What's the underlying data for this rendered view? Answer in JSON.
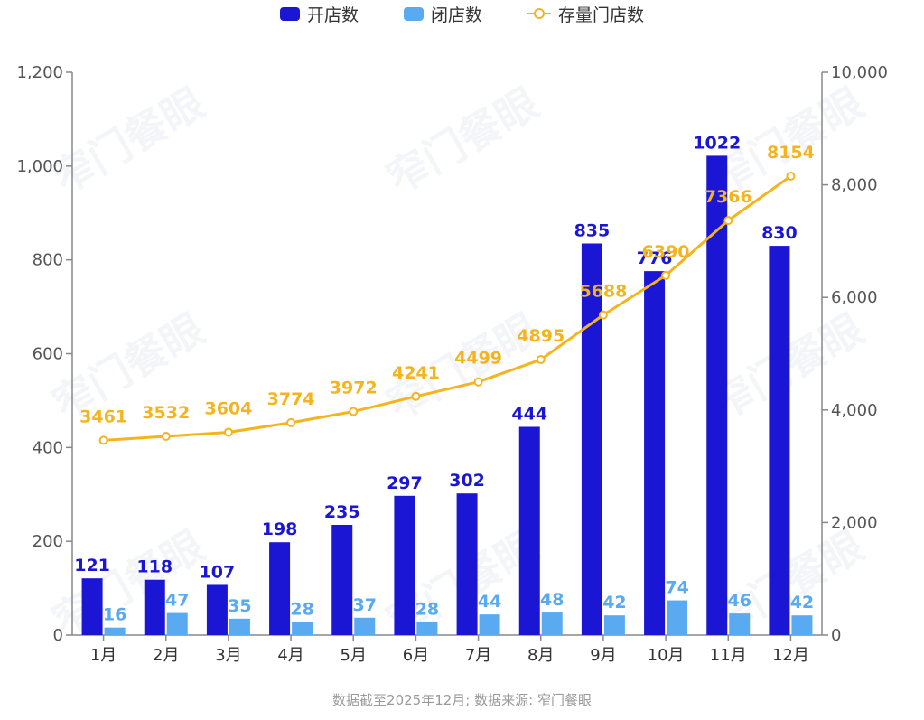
{
  "legend": {
    "open_label": "开店数",
    "close_label": "闭店数",
    "stock_label": "存量门店数"
  },
  "colors": {
    "open": "#1a16d4",
    "close": "#5aaaf2",
    "stock": "#f5b41e",
    "axis": "#888888"
  },
  "watermark": "窄门餐眼",
  "footnote": "数据截至2025年12月; 数据来源: 窄门餐眼",
  "chart_data": {
    "type": "bar+line",
    "categories": [
      "1月",
      "2月",
      "3月",
      "4月",
      "5月",
      "6月",
      "7月",
      "8月",
      "9月",
      "10月",
      "11月",
      "12月"
    ],
    "series": [
      {
        "name": "开店数",
        "type": "bar",
        "axis": "left",
        "values": [
          121,
          118,
          107,
          198,
          235,
          297,
          302,
          444,
          835,
          776,
          1022,
          830
        ]
      },
      {
        "name": "闭店数",
        "type": "bar",
        "axis": "left",
        "values": [
          16,
          47,
          35,
          28,
          37,
          28,
          44,
          48,
          42,
          74,
          46,
          42
        ]
      },
      {
        "name": "存量门店数",
        "type": "line",
        "axis": "right",
        "values": [
          3461,
          3532,
          3604,
          3774,
          3972,
          4241,
          4499,
          4895,
          5688,
          6390,
          7366,
          8154
        ]
      }
    ],
    "y_left": {
      "min": 0,
      "max": 1200,
      "ticks": [
        0,
        200,
        400,
        600,
        800,
        1000,
        1200
      ],
      "tick_labels": [
        "0",
        "200",
        "400",
        "600",
        "800",
        "1,000",
        "1,200"
      ]
    },
    "y_right": {
      "min": 0,
      "max": 10000,
      "ticks": [
        0,
        2000,
        4000,
        6000,
        8000,
        10000
      ],
      "tick_labels": [
        "0",
        "2,000",
        "4,000",
        "6,000",
        "8,000",
        "10,000"
      ]
    },
    "grid": false,
    "legend_position": "top-center"
  }
}
